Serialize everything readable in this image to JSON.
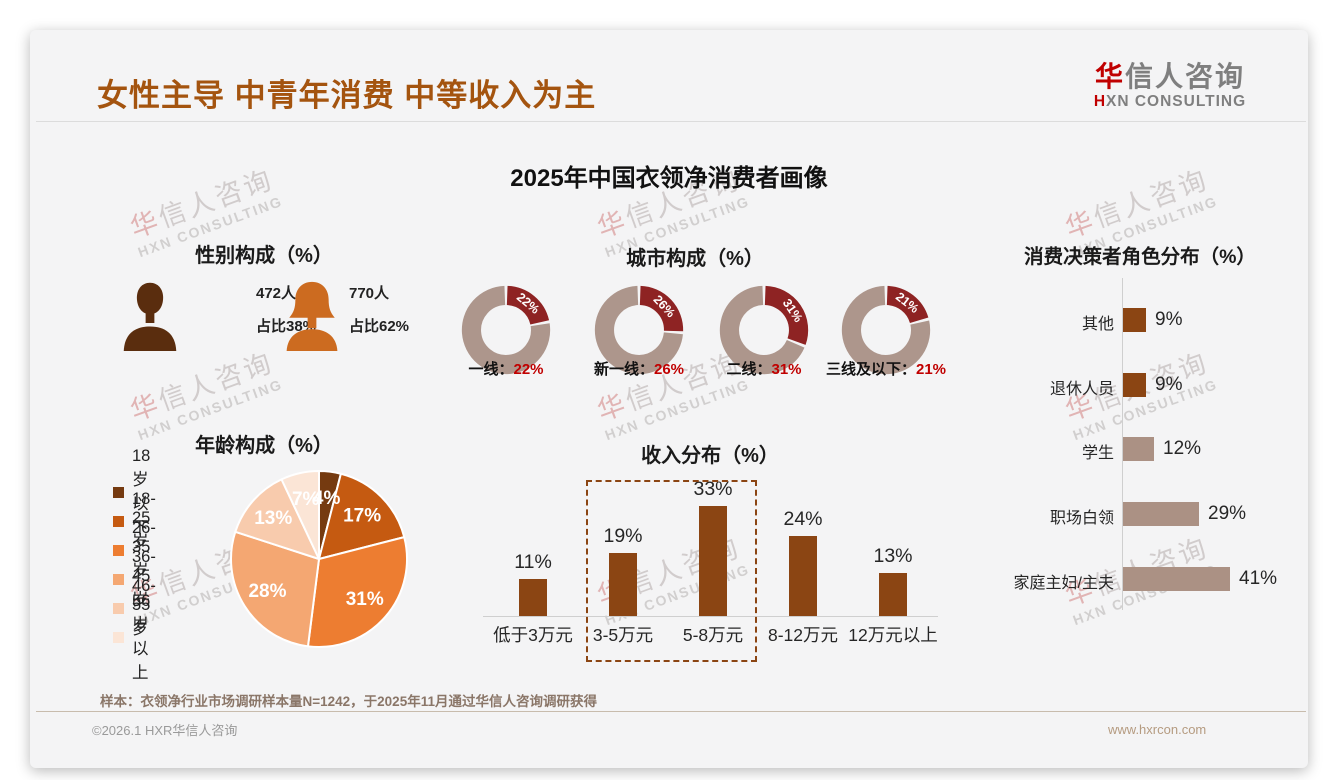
{
  "page": {
    "header": {
      "title": "女性主导 中青年消费 中等收入为主",
      "logo": {
        "cn_first": "华",
        "cn_rest": "信人咨询",
        "en_first": "H",
        "en_rest": "XN CONSULTING"
      }
    },
    "subtitle": "2025年中国衣领净消费者画像",
    "watermark": {
      "cn": "华信人咨询",
      "en": "HXN CONSULTING"
    },
    "gender": {
      "title": "性别构成（%）",
      "male": {
        "count": "472人",
        "share": "占比38%",
        "color": "#5A2D0E"
      },
      "female": {
        "count": "770人",
        "share": "占比62%",
        "color": "#CC6B20"
      }
    },
    "footer": {
      "note": "样本：衣领净行业市场调研样本量N=1242，于2025年11月通过华信人咨询调研获得",
      "copyright": "©2026.1 HXR华信人咨询",
      "website": "www.hxrcon.com"
    }
  },
  "chart_data": [
    {
      "type": "pie",
      "subtype": "donut_multiples",
      "title": "城市构成（%）",
      "items": [
        {
          "label": "一线",
          "value": 22
        },
        {
          "label": "新一线",
          "value": 26
        },
        {
          "label": "二线",
          "value": 31
        },
        {
          "label": "三线及以下",
          "value": 21
        }
      ],
      "highlight_color": "#8E2323",
      "rest_color": "#AD968C",
      "value_text_color": "#C00000",
      "value_label_suffix": "%"
    },
    {
      "type": "pie",
      "title": "年龄构成（%）",
      "categories": [
        "18岁以下",
        "18-25岁",
        "26-35岁",
        "36-45岁",
        "46-55岁",
        "56岁以上"
      ],
      "values": [
        4,
        17,
        31,
        28,
        13,
        7
      ],
      "colors": [
        "#753A10",
        "#C55A11",
        "#ED7D31",
        "#F4A772",
        "#F8CBAD",
        "#FBE5D6"
      ],
      "legend_position": "left",
      "start_angle_deg": 0,
      "clockwise": true,
      "label_color": "#ffffff"
    },
    {
      "type": "bar",
      "title": "收入分布（%）",
      "categories": [
        "低于3万元",
        "3-5万元",
        "5-8万元",
        "8-12万元",
        "12万元以上"
      ],
      "values": [
        11,
        19,
        33,
        24,
        13
      ],
      "bar_color": "#8B4513",
      "highlight_box": {
        "categories": [
          "3-5万元",
          "5-8万元"
        ],
        "style": "dashed",
        "color": "#8B4513"
      }
    },
    {
      "type": "bar",
      "orientation": "horizontal",
      "title": "消费决策者角色分布（%）",
      "categories": [
        "其他",
        "退休人员",
        "学生",
        "职场白领",
        "家庭主妇/主夫"
      ],
      "values": [
        9,
        9,
        12,
        29,
        41
      ],
      "bar_colors": [
        "#8B4513",
        "#8B4513",
        "#AB9184",
        "#AB9184",
        "#AB9184"
      ]
    }
  ]
}
